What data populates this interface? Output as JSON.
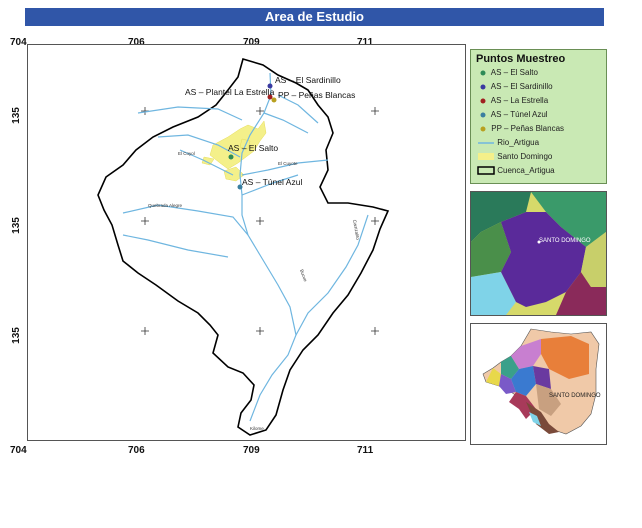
{
  "title": "Area de Estudio",
  "coords": {
    "top": [
      "704",
      "706",
      "709",
      "711"
    ],
    "bottom": [
      "704",
      "706",
      "709",
      "711"
    ],
    "left": [
      "135",
      "135",
      "135"
    ]
  },
  "map_labels": {
    "sardinillo": "AS – El Sardinillo",
    "estrella": "AS – Plantel La Estrella",
    "penas": "PP – Peñas Blancas",
    "salto": "AS – El Salto",
    "tunel": "AS – Túnel Azul",
    "rio1": "El Coyol",
    "rio2": "El Cuyote",
    "rio3": "Quebrada Alegre",
    "rio4": "Bucue",
    "rio5": "Carrizalito",
    "rio6": "Kilome"
  },
  "legend": {
    "title": "Puntos Muestreo",
    "items": [
      {
        "label": "AS – El Salto",
        "color": "#2e8b57",
        "kind": "dot"
      },
      {
        "label": "AS – El Sardinillo",
        "color": "#3a3aa0",
        "kind": "dot"
      },
      {
        "label": "AS – La Estrella",
        "color": "#a02020",
        "kind": "dot"
      },
      {
        "label": "AS – Túnel Azul",
        "color": "#3a7fa0",
        "kind": "dot"
      },
      {
        "label": "PP – Peñas Blancas",
        "color": "#b8a020",
        "kind": "dot"
      },
      {
        "label": "Rio_Artigua",
        "color": "#6fb6e0",
        "kind": "line"
      },
      {
        "label": "Santo Domingo",
        "color": "#f4f08a",
        "kind": "fill"
      },
      {
        "label": "Cuenca_Artigua",
        "color": "#000000",
        "kind": "box"
      }
    ]
  },
  "inset1": {
    "label": "SANTO DOMINGO"
  },
  "inset2": {
    "label": "SANTO DOMINGO"
  }
}
